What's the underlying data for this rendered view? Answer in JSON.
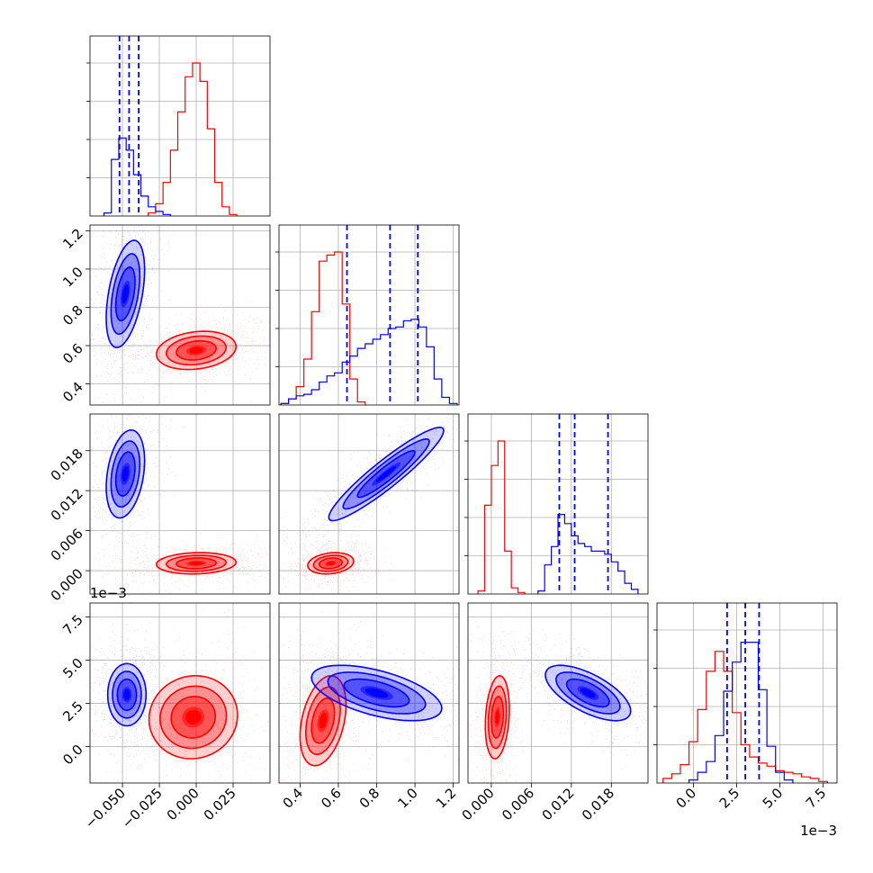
{
  "chart_data": {
    "type": "corner",
    "parameters": 4,
    "colors": {
      "red": "#ff0000",
      "blue": "#0000ff"
    },
    "grid": true,
    "axes": [
      {
        "range": [
          -0.072,
          0.05
        ],
        "ticks": [
          -0.05,
          -0.025,
          0.0,
          0.025
        ],
        "tick_labels": [
          "−0.050",
          "−0.025",
          "0.000",
          "0.025"
        ],
        "exponent": ""
      },
      {
        "range": [
          0.29,
          1.23
        ],
        "ticks": [
          0.4,
          0.6,
          0.8,
          1.0,
          1.2
        ],
        "tick_labels": [
          "0.4",
          "0.6",
          "0.8",
          "1.0",
          "1.2"
        ],
        "exponent": ""
      },
      {
        "range": [
          -0.0035,
          0.0235
        ],
        "ticks": [
          0.0,
          0.006,
          0.012,
          0.018
        ],
        "tick_labels": [
          "0.000",
          "0.006",
          "0.012",
          "0.018"
        ],
        "exponent": ""
      },
      {
        "range": [
          -0.0021,
          0.0083
        ],
        "ticks": [
          0.0,
          0.0025,
          0.005,
          0.0075
        ],
        "tick_labels": [
          "0.0",
          "2.5",
          "5.0",
          "7.5"
        ],
        "exponent": "1e−3"
      }
    ],
    "histograms": [
      {
        "quantiles_blue": [
          -0.052,
          -0.0455,
          -0.039
        ],
        "red": [
          {
            "x": -0.03,
            "h": 0.02
          },
          {
            "x": -0.025,
            "h": 0.08
          },
          {
            "x": -0.02,
            "h": 0.22
          },
          {
            "x": -0.015,
            "h": 0.43
          },
          {
            "x": -0.01,
            "h": 0.68
          },
          {
            "x": -0.005,
            "h": 0.91
          },
          {
            "x": 0.0,
            "h": 1.0
          },
          {
            "x": 0.005,
            "h": 0.88
          },
          {
            "x": 0.01,
            "h": 0.57
          },
          {
            "x": 0.015,
            "h": 0.22
          },
          {
            "x": 0.02,
            "h": 0.06
          },
          {
            "x": 0.025,
            "h": 0.01
          }
        ],
        "blue": [
          {
            "x": -0.06,
            "h": 0.02
          },
          {
            "x": -0.055,
            "h": 0.37
          },
          {
            "x": -0.05,
            "h": 0.51
          },
          {
            "x": -0.045,
            "h": 0.43
          },
          {
            "x": -0.04,
            "h": 0.27
          },
          {
            "x": -0.035,
            "h": 0.13
          },
          {
            "x": -0.03,
            "h": 0.06
          },
          {
            "x": -0.025,
            "h": 0.03
          },
          {
            "x": -0.02,
            "h": 0.01
          }
        ]
      },
      {
        "quantiles_blue": [
          0.645,
          0.87,
          1.015
        ],
        "red": [
          {
            "x": 0.32,
            "h": 0.01
          },
          {
            "x": 0.36,
            "h": 0.04
          },
          {
            "x": 0.4,
            "h": 0.12
          },
          {
            "x": 0.44,
            "h": 0.3
          },
          {
            "x": 0.48,
            "h": 0.61
          },
          {
            "x": 0.52,
            "h": 0.94
          },
          {
            "x": 0.56,
            "h": 0.98
          },
          {
            "x": 0.6,
            "h": 1.0
          },
          {
            "x": 0.64,
            "h": 0.66
          },
          {
            "x": 0.68,
            "h": 0.17
          },
          {
            "x": 0.72,
            "h": 0.02
          }
        ],
        "blue": [
          {
            "x": 0.32,
            "h": 0.01
          },
          {
            "x": 0.36,
            "h": 0.04
          },
          {
            "x": 0.4,
            "h": 0.06
          },
          {
            "x": 0.44,
            "h": 0.07
          },
          {
            "x": 0.48,
            "h": 0.1
          },
          {
            "x": 0.52,
            "h": 0.15
          },
          {
            "x": 0.56,
            "h": 0.19
          },
          {
            "x": 0.6,
            "h": 0.21
          },
          {
            "x": 0.64,
            "h": 0.28
          },
          {
            "x": 0.68,
            "h": 0.32
          },
          {
            "x": 0.72,
            "h": 0.37
          },
          {
            "x": 0.76,
            "h": 0.4
          },
          {
            "x": 0.8,
            "h": 0.43
          },
          {
            "x": 0.84,
            "h": 0.46
          },
          {
            "x": 0.88,
            "h": 0.5
          },
          {
            "x": 0.92,
            "h": 0.51
          },
          {
            "x": 0.96,
            "h": 0.55
          },
          {
            "x": 1.0,
            "h": 0.56
          },
          {
            "x": 1.04,
            "h": 0.51
          },
          {
            "x": 1.08,
            "h": 0.38
          },
          {
            "x": 1.12,
            "h": 0.17
          },
          {
            "x": 1.16,
            "h": 0.05
          },
          {
            "x": 1.2,
            "h": 0.01
          }
        ]
      },
      {
        "quantiles_blue": [
          0.0102,
          0.0125,
          0.0175
        ],
        "red": [
          {
            "x": -0.0015,
            "h": 0.02
          },
          {
            "x": -0.0005,
            "h": 0.58
          },
          {
            "x": 0.0005,
            "h": 0.84
          },
          {
            "x": 0.0015,
            "h": 1.0
          },
          {
            "x": 0.0025,
            "h": 0.28
          },
          {
            "x": 0.0035,
            "h": 0.04
          },
          {
            "x": 0.0045,
            "h": 0.01
          }
        ],
        "blue": [
          {
            "x": 0.0075,
            "h": 0.02
          },
          {
            "x": 0.0085,
            "h": 0.19
          },
          {
            "x": 0.0095,
            "h": 0.31
          },
          {
            "x": 0.0105,
            "h": 0.52
          },
          {
            "x": 0.0115,
            "h": 0.46
          },
          {
            "x": 0.0125,
            "h": 0.38
          },
          {
            "x": 0.0135,
            "h": 0.33
          },
          {
            "x": 0.0145,
            "h": 0.31
          },
          {
            "x": 0.0155,
            "h": 0.28
          },
          {
            "x": 0.0165,
            "h": 0.28
          },
          {
            "x": 0.0175,
            "h": 0.26
          },
          {
            "x": 0.0185,
            "h": 0.21
          },
          {
            "x": 0.0195,
            "h": 0.15
          },
          {
            "x": 0.0205,
            "h": 0.07
          },
          {
            "x": 0.0215,
            "h": 0.03
          }
        ]
      },
      {
        "quantiles_blue": [
          0.00195,
          0.003,
          0.0038
        ],
        "red": [
          {
            "x": -0.0015,
            "h": 0.03
          },
          {
            "x": -0.001,
            "h": 0.06
          },
          {
            "x": -0.0005,
            "h": 0.12
          },
          {
            "x": 0.0,
            "h": 0.27
          },
          {
            "x": 0.0005,
            "h": 0.48
          },
          {
            "x": 0.001,
            "h": 0.73
          },
          {
            "x": 0.0015,
            "h": 0.86
          },
          {
            "x": 0.002,
            "h": 0.73
          },
          {
            "x": 0.0025,
            "h": 0.46
          },
          {
            "x": 0.003,
            "h": 0.25
          },
          {
            "x": 0.0035,
            "h": 0.17
          },
          {
            "x": 0.004,
            "h": 0.13
          },
          {
            "x": 0.0045,
            "h": 0.11
          },
          {
            "x": 0.005,
            "h": 0.08
          },
          {
            "x": 0.0055,
            "h": 0.07
          },
          {
            "x": 0.006,
            "h": 0.06
          },
          {
            "x": 0.0065,
            "h": 0.04
          },
          {
            "x": 0.007,
            "h": 0.03
          },
          {
            "x": 0.0075,
            "h": 0.01
          }
        ],
        "blue": [
          {
            "x": 0.0,
            "h": 0.02
          },
          {
            "x": 0.0005,
            "h": 0.07
          },
          {
            "x": 0.001,
            "h": 0.14
          },
          {
            "x": 0.0015,
            "h": 0.31
          },
          {
            "x": 0.002,
            "h": 0.6
          },
          {
            "x": 0.0025,
            "h": 0.79
          },
          {
            "x": 0.003,
            "h": 0.92
          },
          {
            "x": 0.0035,
            "h": 0.92
          },
          {
            "x": 0.004,
            "h": 0.61
          },
          {
            "x": 0.0045,
            "h": 0.24
          },
          {
            "x": 0.005,
            "h": 0.07
          },
          {
            "x": 0.0055,
            "h": 0.02
          }
        ]
      }
    ],
    "joint": [
      {
        "row": 1,
        "col": 0,
        "red": {
          "mean": [
            0.0,
            0.575
          ],
          "sd": [
            0.0135,
            0.05
          ],
          "rho": 0.2
        },
        "blue": {
          "mean": [
            -0.048,
            0.87
          ],
          "sd": [
            0.0065,
            0.14
          ],
          "rho": 0.45
        }
      },
      {
        "row": 2,
        "col": 0,
        "red": {
          "mean": [
            0.0,
            0.0011
          ],
          "sd": [
            0.0135,
            0.0008
          ],
          "rho": 0.1
        },
        "blue": {
          "mean": [
            -0.048,
            0.0145
          ],
          "sd": [
            0.0065,
            0.0033
          ],
          "rho": 0.3
        }
      },
      {
        "row": 2,
        "col": 1,
        "red": {
          "mean": [
            0.56,
            0.0011
          ],
          "sd": [
            0.06,
            0.0008
          ],
          "rho": 0.2
        },
        "blue": {
          "mean": [
            0.85,
            0.0145
          ],
          "sd": [
            0.15,
            0.0035
          ],
          "rho": 0.93
        }
      },
      {
        "row": 3,
        "col": 0,
        "red": {
          "mean": [
            -0.002,
            0.0017
          ],
          "sd": [
            0.015,
            0.0012
          ],
          "rho": 0.05
        },
        "blue": {
          "mean": [
            -0.047,
            0.003
          ],
          "sd": [
            0.0065,
            0.0009
          ],
          "rho": 0.0
        }
      },
      {
        "row": 3,
        "col": 1,
        "red": {
          "mean": [
            0.52,
            0.0015
          ],
          "sd": [
            0.06,
            0.0013
          ],
          "rho": 0.35
        },
        "blue": {
          "mean": [
            0.8,
            0.0031
          ],
          "sd": [
            0.17,
            0.0008
          ],
          "rho": -0.55
        }
      },
      {
        "row": 3,
        "col": 2,
        "red": {
          "mean": [
            0.0009,
            0.0017
          ],
          "sd": [
            0.0009,
            0.0012
          ],
          "rho": 0.2
        },
        "blue": {
          "mean": [
            0.0145,
            0.0031
          ],
          "sd": [
            0.0032,
            0.0008
          ],
          "rho": -0.65
        }
      }
    ]
  }
}
